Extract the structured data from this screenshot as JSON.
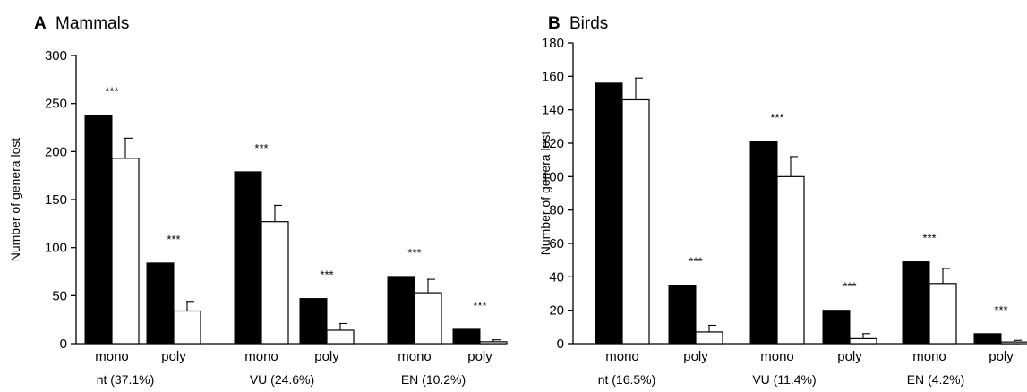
{
  "chart_data": [
    {
      "type": "bar",
      "panel_letter": "A",
      "title": "Mammals",
      "ylabel": "Number of genera lost",
      "xlabel": "",
      "ylim": [
        0,
        300
      ],
      "yticks": [
        0,
        50,
        100,
        150,
        200,
        250,
        300
      ],
      "bar_categories": [
        "mono",
        "poly",
        "mono",
        "poly",
        "mono",
        "poly"
      ],
      "groups": [
        "nt (37.1%)",
        "VU (24.6%)",
        "EN (10.2%)"
      ],
      "series": [
        {
          "color": "#000000",
          "values": [
            238,
            84,
            179,
            47,
            70,
            15
          ]
        },
        {
          "color": "#ffffff",
          "values": [
            193,
            34,
            127,
            14,
            53,
            2
          ],
          "error": [
            21,
            10,
            17,
            7,
            14,
            2
          ]
        }
      ],
      "annotations": [
        "***",
        "***",
        "***",
        "***",
        "***",
        "***"
      ],
      "grid": false,
      "legend": "none"
    },
    {
      "type": "bar",
      "panel_letter": "B",
      "title": "Birds",
      "ylabel": "Number of genera lost",
      "xlabel": "",
      "ylim": [
        0,
        180
      ],
      "yticks": [
        0,
        20,
        40,
        60,
        80,
        100,
        120,
        140,
        160,
        180
      ],
      "bar_categories": [
        "mono",
        "poly",
        "mono",
        "poly",
        "mono",
        "poly"
      ],
      "groups": [
        "nt (16.5%)",
        "VU (11.4%)",
        "EN (4.2%)"
      ],
      "series": [
        {
          "color": "#000000",
          "values": [
            156,
            35,
            121,
            20,
            49,
            6
          ]
        },
        {
          "color": "#ffffff",
          "values": [
            146,
            7,
            100,
            3,
            36,
            1
          ],
          "error": [
            13,
            4,
            12,
            3,
            9,
            1
          ]
        }
      ],
      "annotations": [
        null,
        "***",
        "***",
        "***",
        "***",
        "***"
      ],
      "grid": false,
      "legend": "none"
    }
  ]
}
